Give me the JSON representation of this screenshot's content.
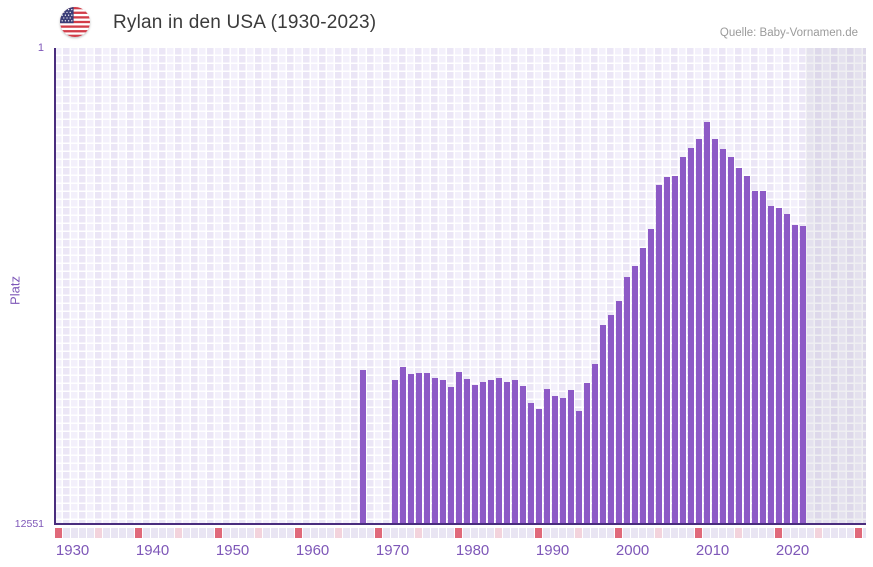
{
  "header": {
    "title": "Rylan in den USA (1930-2023)",
    "source": "Quelle: Baby-Vornamen.de",
    "flag_icon": "us-flag-icon"
  },
  "chart_data": {
    "type": "bar",
    "title": "Rylan in den USA (1930-2023)",
    "xlabel": "",
    "ylabel": "Platz",
    "y_axis": {
      "tick_top": "1",
      "tick_bottom": "12551",
      "min": 1,
      "max": 12551,
      "inverted": true,
      "scale": "linear"
    },
    "x_axis": {
      "ticks": [
        1930,
        1940,
        1950,
        1960,
        1970,
        1980,
        1990,
        2000,
        2010,
        2020
      ],
      "range_years": [
        1930,
        2030
      ],
      "data_end_year": 2023
    },
    "legend": null,
    "grid": true,
    "series": [
      {
        "name": "Platz von Rylan in den USA",
        "data": [
          [
            1968,
            8492
          ],
          [
            1972,
            8755
          ],
          [
            1973,
            8413
          ],
          [
            1974,
            8597
          ],
          [
            1975,
            8571
          ],
          [
            1976,
            8571
          ],
          [
            1977,
            8702
          ],
          [
            1978,
            8755
          ],
          [
            1979,
            8939
          ],
          [
            1980,
            8544
          ],
          [
            1981,
            8729
          ],
          [
            1982,
            8887
          ],
          [
            1983,
            8808
          ],
          [
            1984,
            8755
          ],
          [
            1985,
            8702
          ],
          [
            1986,
            8808
          ],
          [
            1987,
            8755
          ],
          [
            1988,
            8913
          ],
          [
            1989,
            9361
          ],
          [
            1990,
            9519
          ],
          [
            1991,
            8992
          ],
          [
            1992,
            9177
          ],
          [
            1993,
            9229
          ],
          [
            1994,
            9019
          ],
          [
            1995,
            9572
          ],
          [
            1996,
            8834
          ],
          [
            1997,
            8333
          ],
          [
            1998,
            7305
          ],
          [
            1999,
            7041
          ],
          [
            2000,
            6672
          ],
          [
            2001,
            6039
          ],
          [
            2002,
            5749
          ],
          [
            2003,
            5274
          ],
          [
            2004,
            4773
          ],
          [
            2005,
            3613
          ],
          [
            2006,
            3402
          ],
          [
            2007,
            3376
          ],
          [
            2008,
            2875
          ],
          [
            2009,
            2637
          ],
          [
            2010,
            2400
          ],
          [
            2011,
            1952
          ],
          [
            2012,
            2400
          ],
          [
            2013,
            2664
          ],
          [
            2014,
            2875
          ],
          [
            2015,
            3165
          ],
          [
            2016,
            3376
          ],
          [
            2017,
            3771
          ],
          [
            2018,
            3771
          ],
          [
            2019,
            4167
          ],
          [
            2020,
            4220
          ],
          [
            2021,
            4378
          ],
          [
            2022,
            4668
          ],
          [
            2023,
            4694
          ]
        ]
      }
    ],
    "timeline_markers": {
      "red_years": [
        1930,
        1940,
        1950,
        1960,
        1970,
        1980,
        1990,
        2000,
        2010,
        2020,
        2030
      ],
      "pink_years": [
        1935,
        1945,
        1955,
        1965,
        1975,
        1985,
        1995,
        2005,
        2015,
        2025
      ]
    },
    "colors": {
      "bar": "#8d5ac6",
      "axis": "#4a2d7e",
      "tick_label": "#7e57b8",
      "title_text": "#3b3b3b",
      "source_text": "#9b9b9b",
      "plot_cell_light": "#f3f0fb",
      "plot_cell_dark": "#ebe6f6",
      "gridline": "#ffffff",
      "no_data_overlay": "rgba(98,98,128,0.10)",
      "strip_base": "#e9e5f3",
      "strip_red": "#e0697a",
      "strip_pink": "#f3d3dc"
    }
  }
}
